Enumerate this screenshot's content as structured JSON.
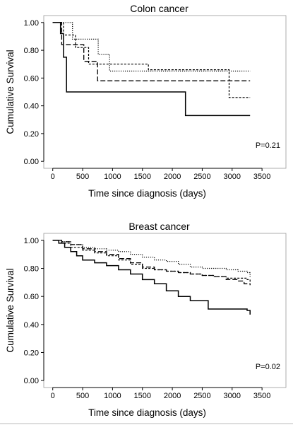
{
  "chart_data": [
    {
      "type": "line",
      "subtype": "kaplan-meier step",
      "title": "Colon cancer",
      "xlabel": "Time since diagnosis (days)",
      "ylabel": "Cumulative Survival",
      "xlim": [
        -150,
        3900
      ],
      "ylim": [
        -0.05,
        1.05
      ],
      "xticks": [
        "0",
        "500",
        "1000",
        "1500",
        "2000",
        "2500",
        "3000",
        "3500"
      ],
      "yticks": [
        "0.00",
        "0.20",
        "0.40",
        "0.60",
        "0.80",
        "1.00"
      ],
      "annotation": "P=0.21",
      "series": [
        {
          "style": "solid",
          "x": [
            0,
            80,
            130,
            180,
            230,
            2200,
            2220,
            3300
          ],
          "y": [
            1.0,
            1.0,
            0.92,
            0.75,
            0.5,
            0.5,
            0.33,
            0.33
          ]
        },
        {
          "style": "dotted",
          "x": [
            0,
            300,
            330,
            700,
            760,
            900,
            950,
            3300
          ],
          "y": [
            1.0,
            1.0,
            0.88,
            0.88,
            0.77,
            0.77,
            0.65,
            0.65
          ]
        },
        {
          "style": "dashed",
          "x": [
            0,
            120,
            180,
            340,
            380,
            560,
            600,
            1550,
            1600,
            2900,
            2950,
            3300
          ],
          "y": [
            1.0,
            1.0,
            0.91,
            0.91,
            0.82,
            0.82,
            0.7,
            0.7,
            0.66,
            0.66,
            0.46,
            0.46
          ]
        },
        {
          "style": "long-dash",
          "x": [
            0,
            100,
            150,
            460,
            520,
            700,
            750,
            3300
          ],
          "y": [
            1.0,
            1.0,
            0.84,
            0.84,
            0.72,
            0.72,
            0.58,
            0.58
          ]
        }
      ]
    },
    {
      "type": "line",
      "subtype": "kaplan-meier step",
      "title": "Breast cancer",
      "xlabel": "Time since diagnosis (days)",
      "ylabel": "Cumulative Survival",
      "xlim": [
        -150,
        3900
      ],
      "ylim": [
        -0.05,
        1.05
      ],
      "xticks": [
        "0",
        "500",
        "1000",
        "1500",
        "2000",
        "2500",
        "3000",
        "3500"
      ],
      "yticks": [
        "0.00",
        "0.20",
        "0.40",
        "0.60",
        "0.80",
        "1.00"
      ],
      "annotation": "P=0.02",
      "series": [
        {
          "style": "solid",
          "x": [
            0,
            100,
            200,
            300,
            400,
            500,
            700,
            900,
            1100,
            1300,
            1500,
            1700,
            1900,
            2100,
            2300,
            2600,
            3250,
            3300
          ],
          "y": [
            1.0,
            0.98,
            0.95,
            0.92,
            0.89,
            0.86,
            0.84,
            0.82,
            0.79,
            0.76,
            0.72,
            0.69,
            0.64,
            0.6,
            0.57,
            0.51,
            0.5,
            0.47
          ]
        },
        {
          "style": "dotted",
          "x": [
            0,
            150,
            300,
            500,
            700,
            900,
            1100,
            1300,
            1500,
            1700,
            1900,
            2100,
            2300,
            2500,
            2700,
            2900,
            3100,
            3250,
            3300
          ],
          "y": [
            1.0,
            0.99,
            0.97,
            0.95,
            0.94,
            0.93,
            0.92,
            0.9,
            0.88,
            0.86,
            0.85,
            0.83,
            0.81,
            0.8,
            0.8,
            0.79,
            0.78,
            0.77,
            0.74
          ]
        },
        {
          "style": "dashed",
          "x": [
            0,
            150,
            300,
            500,
            700,
            900,
            1100,
            1300,
            1500,
            1700,
            1900,
            2100,
            2300,
            2500,
            2700,
            2900,
            3100,
            3250,
            3300
          ],
          "y": [
            1.0,
            0.98,
            0.95,
            0.93,
            0.91,
            0.89,
            0.86,
            0.83,
            0.8,
            0.79,
            0.78,
            0.77,
            0.76,
            0.75,
            0.74,
            0.73,
            0.73,
            0.72,
            0.7
          ]
        },
        {
          "style": "long-dash",
          "x": [
            0,
            150,
            300,
            500,
            700,
            900,
            1100,
            1300,
            1500,
            1700,
            1900,
            2100,
            2300,
            2500,
            2700,
            2900,
            3100,
            3200,
            3300
          ],
          "y": [
            1.0,
            0.99,
            0.97,
            0.94,
            0.92,
            0.9,
            0.87,
            0.84,
            0.81,
            0.79,
            0.78,
            0.77,
            0.76,
            0.75,
            0.74,
            0.72,
            0.71,
            0.69,
            0.68
          ]
        }
      ]
    }
  ]
}
